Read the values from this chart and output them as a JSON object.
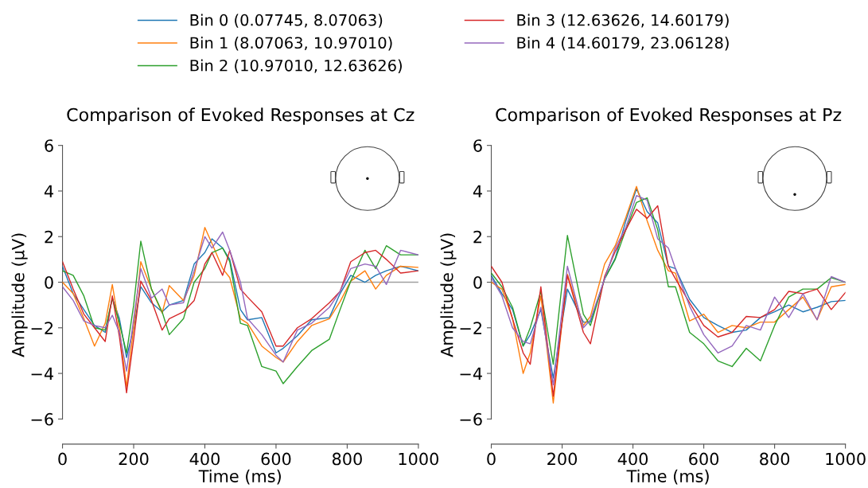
{
  "chart_data": [
    {
      "type": "line",
      "title": "Comparison of Evoked Responses at Cz",
      "xlabel": "Time (ms)",
      "ylabel": "Amplitude (µV)",
      "x": [
        0,
        30,
        60,
        90,
        120,
        140,
        160,
        180,
        200,
        220,
        250,
        280,
        300,
        340,
        370,
        400,
        420,
        450,
        470,
        500,
        520,
        560,
        600,
        620,
        660,
        700,
        750,
        780,
        810,
        850,
        880,
        910,
        950,
        1000
      ],
      "series": [
        {
          "name": "Bin 0 (0.07745, 8.07063)",
          "color": "#1f77b4",
          "values": [
            0.7,
            -0.5,
            -1.2,
            -1.9,
            -2.2,
            -0.7,
            -1.6,
            -3.3,
            -2.0,
            -0.2,
            -0.9,
            -1.3,
            -1.0,
            -0.8,
            0.8,
            1.3,
            1.9,
            1.5,
            1.0,
            -1.2,
            -1.65,
            -1.55,
            -3.1,
            -2.9,
            -2.35,
            -1.65,
            -1.55,
            -0.5,
            0.3,
            0.0,
            0.3,
            0.5,
            0.7,
            0.5
          ]
        },
        {
          "name": "Bin 1 (8.07063, 10.97010)",
          "color": "#ff7f0e",
          "values": [
            0.0,
            -0.5,
            -1.6,
            -2.8,
            -1.8,
            -0.1,
            -2.0,
            -4.6,
            -2.0,
            0.9,
            -0.3,
            -1.35,
            -0.15,
            -0.8,
            0.3,
            2.4,
            1.7,
            0.6,
            0.2,
            -1.6,
            -1.8,
            -2.8,
            -3.3,
            -3.5,
            -2.6,
            -1.9,
            -1.6,
            -0.85,
            0.05,
            0.5,
            -0.3,
            0.3,
            0.7,
            0.65
          ]
        },
        {
          "name": "Bin 2 (10.97010, 12.63626)",
          "color": "#2ca02c",
          "values": [
            0.5,
            0.3,
            -0.6,
            -2.0,
            -2.1,
            -0.7,
            -1.8,
            -3.1,
            -1.0,
            1.8,
            -0.3,
            -1.3,
            -2.3,
            -1.6,
            0.0,
            0.6,
            1.3,
            1.5,
            0.9,
            -1.8,
            -1.9,
            -3.7,
            -3.9,
            -4.45,
            -3.7,
            -3.0,
            -2.5,
            -1.2,
            0.05,
            1.4,
            0.6,
            1.6,
            1.2,
            1.2
          ]
        },
        {
          "name": "Bin 3 (12.63626, 14.60179)",
          "color": "#d62728",
          "values": [
            0.9,
            -0.3,
            -1.4,
            -2.0,
            -2.6,
            -0.6,
            -2.4,
            -4.85,
            -2.5,
            0.05,
            -0.8,
            -2.1,
            -1.6,
            -1.3,
            -0.8,
            0.8,
            1.3,
            0.3,
            1.4,
            -0.3,
            -0.65,
            -1.3,
            -2.8,
            -2.8,
            -2.0,
            -1.6,
            -0.9,
            -0.4,
            0.9,
            1.3,
            1.4,
            1.0,
            0.4,
            0.5
          ]
        },
        {
          "name": "Bin 4 (14.60179, 23.06128)",
          "color": "#9467bd",
          "values": [
            -0.2,
            -0.8,
            -1.7,
            -1.9,
            -2.0,
            -1.45,
            -2.2,
            -3.9,
            -1.6,
            0.6,
            -0.7,
            -0.3,
            -1.0,
            -0.9,
            0.5,
            2.0,
            1.5,
            2.2,
            1.4,
            0.0,
            -1.6,
            -2.3,
            -3.2,
            -3.5,
            -2.1,
            -1.8,
            -1.1,
            -0.4,
            0.6,
            0.8,
            0.7,
            -0.1,
            1.4,
            1.2
          ]
        }
      ],
      "xlim": [
        0,
        1000
      ],
      "ylim": [
        -7.1,
        6
      ],
      "xticks": [
        0,
        200,
        400,
        600,
        800,
        1000
      ],
      "yticks": [
        {
          "value": -6,
          "label": "−6"
        },
        {
          "value": -4,
          "label": "−4"
        },
        {
          "value": -2,
          "label": "−2"
        },
        0,
        2,
        4,
        6
      ],
      "ref_lines": [
        {
          "axis": "y",
          "value": 0,
          "color": "#a0a0a0"
        }
      ],
      "legend": "top",
      "grid": false,
      "marker": "none",
      "line_style": "solid"
    },
    {
      "type": "line",
      "title": "Comparison of Evoked Responses at Pz",
      "xlabel": "Time (ms)",
      "ylabel": "Amplitude (µV)",
      "x": [
        0,
        30,
        60,
        90,
        110,
        140,
        175,
        215,
        260,
        280,
        320,
        350,
        380,
        410,
        440,
        470,
        500,
        520,
        560,
        600,
        640,
        680,
        720,
        760,
        800,
        840,
        880,
        920,
        960,
        1000
      ],
      "series": [
        {
          "color": "#1f77b4",
          "values": [
            0.3,
            -0.5,
            -1.2,
            -2.8,
            -2.3,
            -1.2,
            -4.2,
            -0.3,
            -1.75,
            -1.75,
            0.15,
            1.05,
            2.7,
            4.1,
            3.1,
            2.6,
            0.7,
            0.6,
            -0.75,
            -1.55,
            -1.9,
            -2.2,
            -2.1,
            -1.55,
            -1.3,
            -1.0,
            -1.3,
            -1.1,
            -0.85,
            -0.8
          ]
        },
        {
          "color": "#ff7f0e",
          "values": [
            0.0,
            -0.3,
            -1.6,
            -4.0,
            -3.1,
            -0.6,
            -5.3,
            0.35,
            -1.9,
            -1.5,
            0.8,
            1.6,
            2.85,
            4.2,
            2.7,
            1.4,
            0.5,
            0.4,
            -1.7,
            -1.4,
            -2.2,
            -1.9,
            -2.0,
            -1.75,
            -1.75,
            -1.2,
            -0.65,
            -1.65,
            -0.2,
            -0.1
          ]
        },
        {
          "color": "#2ca02c",
          "values": [
            0.4,
            -0.2,
            -1.1,
            -2.8,
            -2.0,
            -0.4,
            -3.6,
            2.05,
            -1.4,
            -1.9,
            0.15,
            1.0,
            2.3,
            3.5,
            3.7,
            2.3,
            -0.2,
            -0.2,
            -2.2,
            -2.7,
            -3.45,
            -3.7,
            -2.9,
            -3.45,
            -1.9,
            -0.65,
            -0.3,
            -0.3,
            0.2,
            0.0
          ]
        },
        {
          "color": "#d62728",
          "values": [
            0.7,
            0.0,
            -1.6,
            -3.1,
            -3.6,
            -0.2,
            -5.0,
            0.3,
            -2.2,
            -2.7,
            0.25,
            1.35,
            2.3,
            3.2,
            2.8,
            3.35,
            0.7,
            0.15,
            -0.9,
            -1.9,
            -2.4,
            -2.2,
            -1.5,
            -1.55,
            -1.2,
            -0.4,
            -0.5,
            -0.3,
            -1.2,
            -0.45
          ]
        },
        {
          "color": "#9467bd",
          "values": [
            0.2,
            -0.6,
            -2.0,
            -2.6,
            -2.7,
            -1.1,
            -4.5,
            0.7,
            -2.0,
            -1.65,
            0.15,
            1.5,
            2.4,
            3.8,
            3.6,
            1.9,
            1.5,
            0.6,
            -1.05,
            -2.3,
            -3.1,
            -2.8,
            -1.9,
            -2.1,
            -0.65,
            -1.55,
            -0.5,
            -1.65,
            0.25,
            0.0
          ]
        }
      ],
      "xlim": [
        0,
        1000
      ],
      "ylim": [
        -7.1,
        6
      ],
      "xticks": [
        0,
        200,
        400,
        600,
        800,
        1000
      ],
      "yticks": [
        {
          "value": -6,
          "label": "−6"
        },
        {
          "value": -4,
          "label": "−4"
        },
        {
          "value": -2,
          "label": "−2"
        },
        0,
        2,
        4,
        6
      ],
      "ref_lines": [
        {
          "axis": "y",
          "value": 0,
          "color": "#a0a0a0"
        }
      ],
      "grid": false,
      "marker": "none",
      "line_style": "solid"
    }
  ]
}
